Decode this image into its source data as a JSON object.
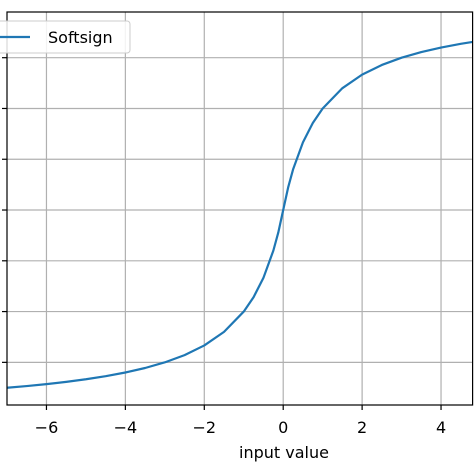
{
  "chart_data": {
    "type": "line",
    "xlabel": "input value",
    "x": [
      -7,
      -6.5,
      -6,
      -5.5,
      -5,
      -4.5,
      -4,
      -3.5,
      -3,
      -2.5,
      -2,
      -1.5,
      -1,
      -0.75,
      -0.5,
      -0.25,
      -0.125,
      0,
      0.125,
      0.25,
      0.5,
      0.75,
      1,
      1.5,
      2,
      2.5,
      3,
      3.5,
      4,
      4.5,
      4.8
    ],
    "series": [
      {
        "name": "Softsign",
        "color": "#1f77b4",
        "values": [
          -0.875,
          -0.8667,
          -0.8571,
          -0.8462,
          -0.8333,
          -0.8182,
          -0.8,
          -0.7778,
          -0.75,
          -0.7143,
          -0.6667,
          -0.6,
          -0.5,
          -0.4286,
          -0.3333,
          -0.2,
          -0.1111,
          0,
          0.1111,
          0.2,
          0.3333,
          0.4286,
          0.5,
          0.6,
          0.6667,
          0.7143,
          0.75,
          0.7778,
          0.8,
          0.8182,
          0.8276
        ]
      }
    ],
    "xlim": [
      -7,
      4.8
    ],
    "xticks": [
      {
        "value": -6,
        "label": "−6"
      },
      {
        "value": -4,
        "label": "−4"
      },
      {
        "value": -2,
        "label": "−2"
      },
      0,
      2,
      4
    ],
    "ylim": [
      -0.96,
      0.975
    ],
    "yticks": [
      -0.75,
      -0.5,
      -0.25,
      0,
      0.25,
      0.5,
      0.75
    ],
    "grid": true,
    "legend": "upper left"
  }
}
